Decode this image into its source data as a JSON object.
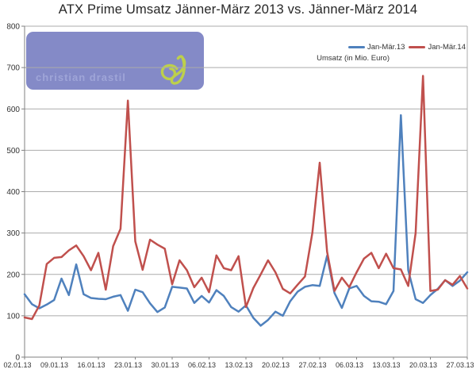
{
  "page": {
    "title": "ATX Prime Umsatz Jänner-März 2013 vs. Jänner-März 2014"
  },
  "watermark": {
    "text": "christian drastil",
    "logo_icon": "cd-script-logo",
    "bg_color": "#6e75bd",
    "bg_opacity": 0.85,
    "text_color": "#9fa5d8",
    "logo_color": "#bdd04b"
  },
  "legend": {
    "items": [
      {
        "label": "Jan-Mär.13",
        "color": "#4F81BD"
      },
      {
        "label": "Jan-Mär.14",
        "color": "#C0504D"
      }
    ],
    "subtitle": "Umsatz (in Mio. Euro)"
  },
  "chart_data": {
    "type": "line",
    "title": "ATX Prime Umsatz Jänner-März 2013 vs. Jänner-März 2014",
    "xlabel": "",
    "ylabel": "Umsatz (in Mio. Euro)",
    "ylim": [
      0,
      800
    ],
    "ytick_interval": 100,
    "grid": true,
    "legend_position": "top-right",
    "points_per_label": 5,
    "x_tick_labels": [
      "02.01.13",
      "09.01.13",
      "16.01.13",
      "23.01.13",
      "30.01.13",
      "06.02.13",
      "13.02.13",
      "20.02.13",
      "27.02.13",
      "06.03.13",
      "13.03.13",
      "20.03.13",
      "27.03.13"
    ],
    "series": [
      {
        "name": "Jan-Mär.13",
        "color": "#4F81BD",
        "values": [
          152,
          128,
          118,
          127,
          138,
          190,
          150,
          224,
          152,
          143,
          141,
          140,
          146,
          150,
          112,
          163,
          157,
          130,
          109,
          120,
          170,
          168,
          166,
          131,
          148,
          132,
          162,
          148,
          121,
          110,
          125,
          95,
          76,
          90,
          110,
          100,
          135,
          158,
          170,
          174,
          172,
          245,
          155,
          119,
          166,
          172,
          148,
          135,
          134,
          128,
          160,
          585,
          210,
          140,
          131,
          150,
          165,
          186,
          172,
          185,
          205
        ]
      },
      {
        "name": "Jan-Mär.14",
        "color": "#C0504D",
        "values": [
          96,
          92,
          125,
          225,
          240,
          242,
          258,
          270,
          244,
          210,
          252,
          163,
          268,
          310,
          620,
          280,
          211,
          284,
          272,
          262,
          176,
          234,
          210,
          169,
          192,
          157,
          246,
          215,
          210,
          244,
          121,
          167,
          200,
          234,
          205,
          165,
          154,
          175,
          195,
          300,
          470,
          255,
          160,
          192,
          169,
          205,
          238,
          252,
          215,
          250,
          215,
          212,
          172,
          300,
          680,
          160,
          163,
          186,
          175,
          196,
          166
        ]
      }
    ]
  }
}
